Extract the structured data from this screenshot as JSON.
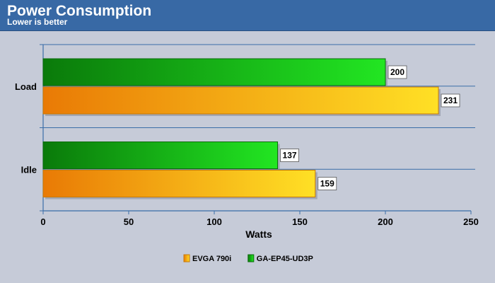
{
  "header": {
    "title": "Power Consumption",
    "subtitle": "Lower is better"
  },
  "chart_data": {
    "type": "bar",
    "orientation": "horizontal",
    "title": "Power Consumption",
    "subtitle": "Lower is better",
    "xlabel": "Watts",
    "ylabel": "",
    "xlim": [
      0,
      250
    ],
    "x_ticks": [
      0,
      50,
      100,
      150,
      200,
      250
    ],
    "categories": [
      "Load",
      "Idle"
    ],
    "series": [
      {
        "name": "GA-EP45-UD3P",
        "values": [
          200,
          137
        ],
        "color": "#1fd21f"
      },
      {
        "name": "EVGA 790i",
        "values": [
          231,
          159
        ],
        "color": "#f5a20f"
      }
    ],
    "legend": {
      "placement": "bottom-center",
      "order": [
        "EVGA 790i",
        "GA-EP45-UD3P"
      ]
    },
    "grid": true
  }
}
